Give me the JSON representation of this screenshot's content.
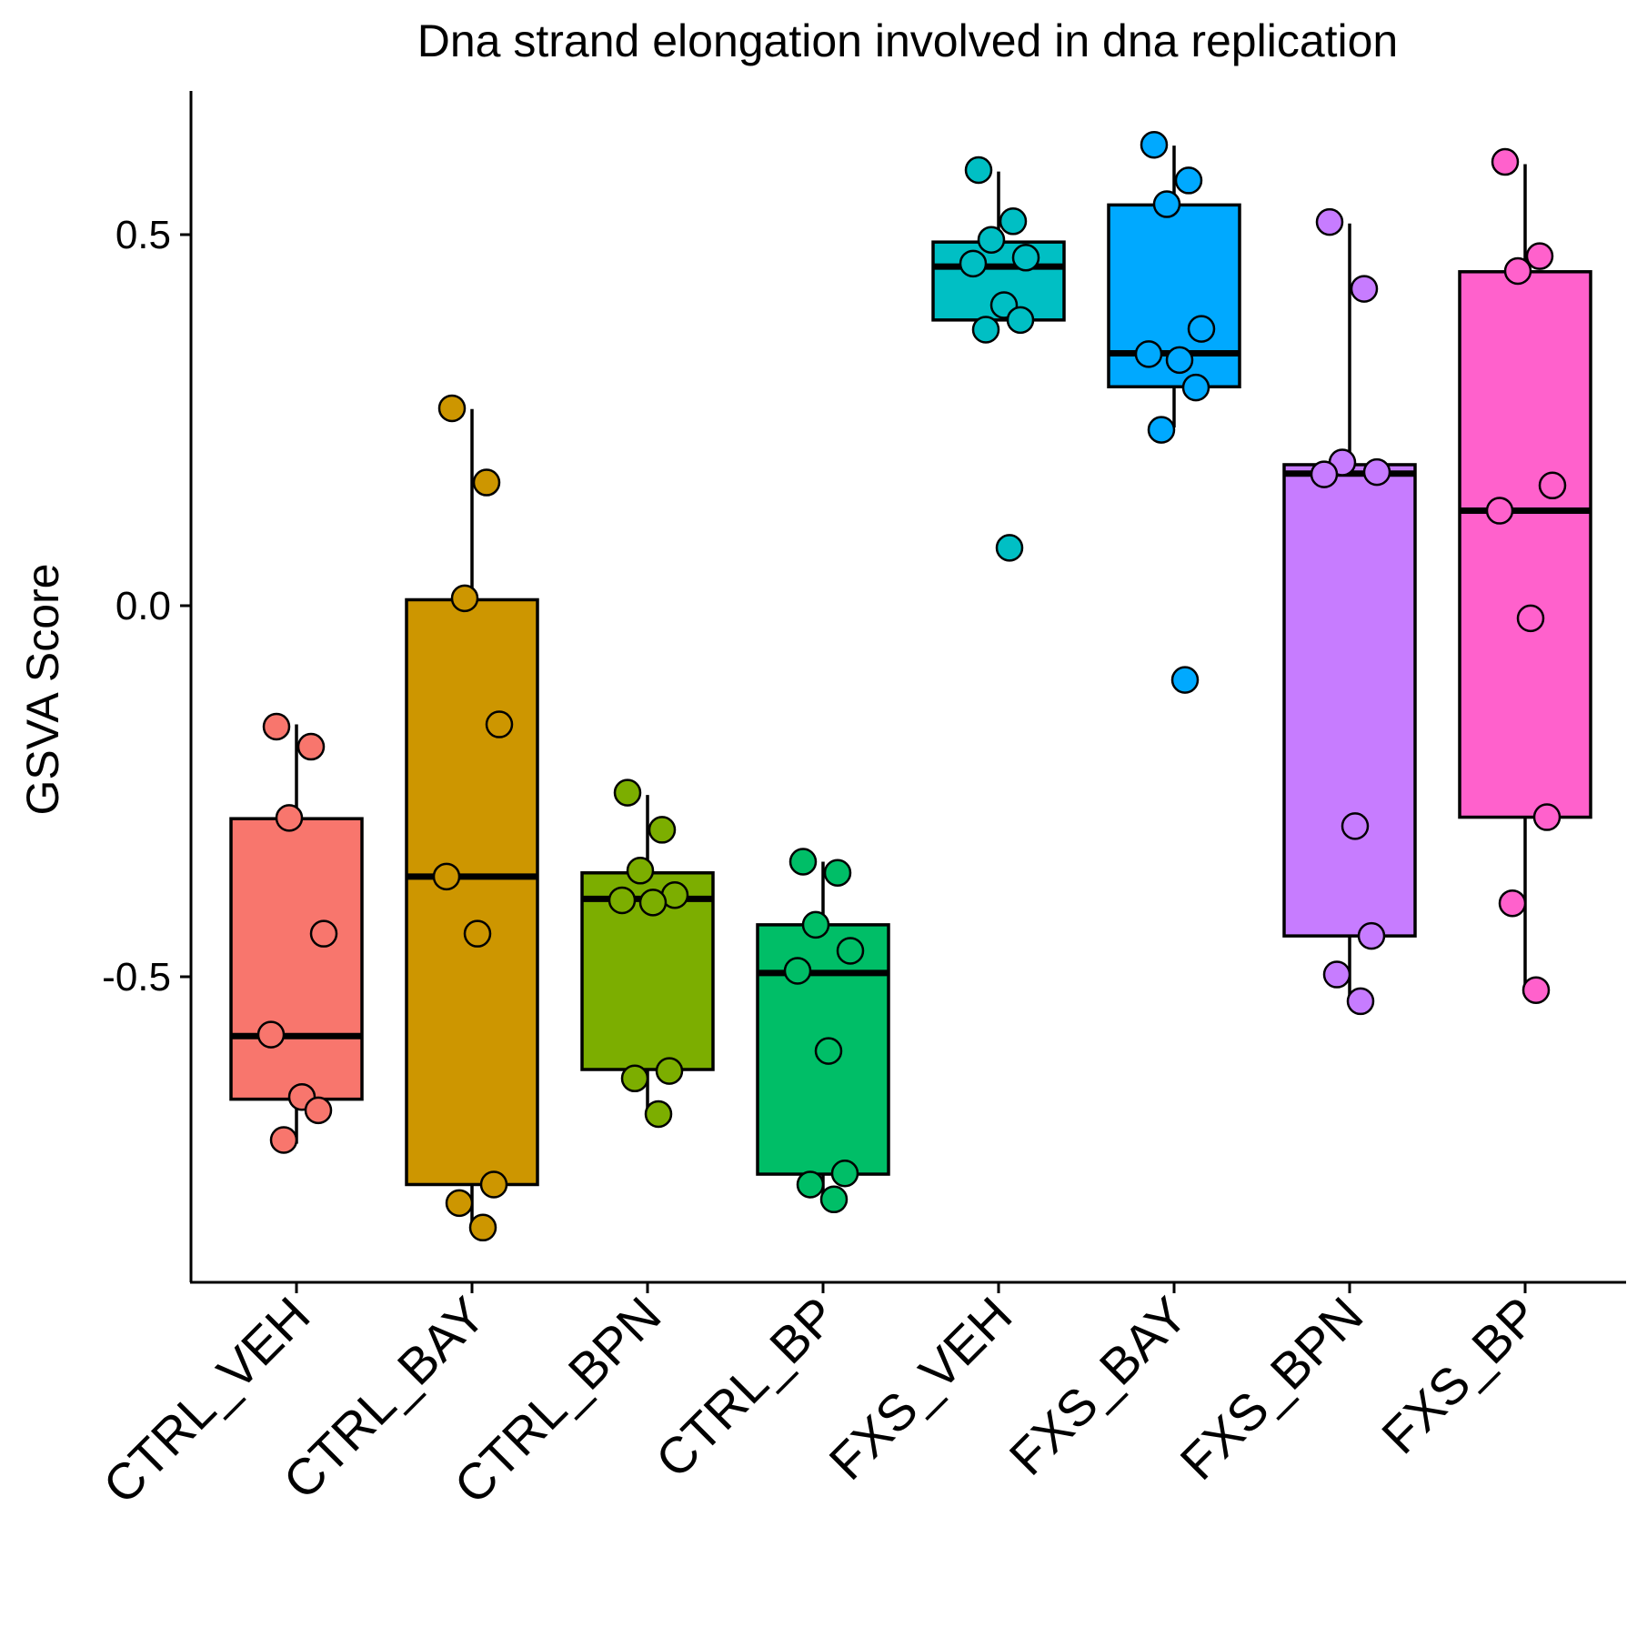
{
  "chart_data": {
    "type": "boxplot",
    "title": "Dna strand elongation involved in dna replication",
    "xlabel": "",
    "ylabel": "GSVA Score",
    "ylim": [
      -0.9,
      0.7
    ],
    "yticks": [
      0.5,
      0.0,
      -0.5
    ],
    "ytick_labels": [
      "0.5",
      "0.0",
      "-0.5"
    ],
    "grid": false,
    "legend": "none",
    "categories": [
      "CTRL_VEH",
      "CTRL_BAY",
      "CTRL_BPN",
      "CTRL_BP",
      "FXS_VEH",
      "FXS_BAY",
      "FXS_BPN",
      "FXS_BP"
    ],
    "groups": [
      {
        "name": "CTRL_VEH",
        "color": "#F8766D",
        "q1": -0.665,
        "median": -0.58,
        "q3": -0.287,
        "whisker_low": -0.725,
        "whisker_high": -0.16,
        "points": [
          -0.163,
          -0.19,
          -0.286,
          -0.442,
          -0.578,
          -0.662,
          -0.68,
          -0.72
        ]
      },
      {
        "name": "CTRL_BAY",
        "color": "#CD9600",
        "q1": -0.78,
        "median": -0.365,
        "q3": 0.008,
        "whisker_low": -0.83,
        "whisker_high": 0.265,
        "points": [
          0.266,
          0.166,
          0.01,
          -0.16,
          -0.365,
          -0.442,
          -0.78,
          -0.805,
          -0.838
        ]
      },
      {
        "name": "CTRL_BPN",
        "color": "#7CAE00",
        "q1": -0.625,
        "median": -0.395,
        "q3": -0.36,
        "whisker_low": -0.68,
        "whisker_high": -0.255,
        "points": [
          -0.252,
          -0.302,
          -0.357,
          -0.39,
          -0.397,
          -0.4,
          -0.627,
          -0.637,
          -0.685
        ]
      },
      {
        "name": "CTRL_BP",
        "color": "#00BE67",
        "q1": -0.766,
        "median": -0.495,
        "q3": -0.43,
        "whisker_low": -0.8,
        "whisker_high": -0.345,
        "points": [
          -0.345,
          -0.36,
          -0.43,
          -0.465,
          -0.492,
          -0.6,
          -0.765,
          -0.78,
          -0.8
        ]
      },
      {
        "name": "FXS_VEH",
        "color": "#00BFC4",
        "q1": 0.385,
        "median": 0.457,
        "q3": 0.49,
        "whisker_low": 0.385,
        "whisker_high": 0.585,
        "points": [
          0.587,
          0.518,
          0.493,
          0.469,
          0.461,
          0.405,
          0.385,
          0.372,
          0.078
        ]
      },
      {
        "name": "FXS_BAY",
        "color": "#00A9FF",
        "q1": 0.295,
        "median": 0.34,
        "q3": 0.54,
        "whisker_low": 0.24,
        "whisker_high": 0.62,
        "points": [
          0.621,
          0.573,
          0.541,
          0.373,
          0.339,
          0.331,
          0.294,
          0.237,
          -0.1
        ]
      },
      {
        "name": "FXS_BPN",
        "color": "#C77CFF",
        "q1": -0.445,
        "median": 0.178,
        "q3": 0.19,
        "whisker_low": -0.53,
        "whisker_high": 0.515,
        "points": [
          0.517,
          0.427,
          0.193,
          0.18,
          0.177,
          -0.297,
          -0.445,
          -0.497,
          -0.533
        ]
      },
      {
        "name": "FXS_BP",
        "color": "#FF61CC",
        "q1": -0.285,
        "median": 0.128,
        "q3": 0.45,
        "whisker_low": -0.515,
        "whisker_high": 0.595,
        "points": [
          0.598,
          0.471,
          0.451,
          0.162,
          0.128,
          -0.017,
          -0.285,
          -0.401,
          -0.518
        ]
      }
    ]
  }
}
